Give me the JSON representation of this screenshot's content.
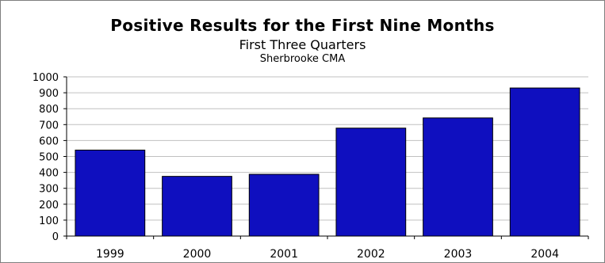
{
  "chart_data": {
    "type": "bar",
    "title": "Positive Results for the First Nine Months",
    "subtitle": "First Three Quarters",
    "subsubtitle": "Sherbrooke CMA",
    "categories": [
      "1999",
      "2000",
      "2001",
      "2002",
      "2003",
      "2004"
    ],
    "values": [
      540,
      375,
      388,
      678,
      742,
      930
    ],
    "xlabel": "",
    "ylabel": "",
    "ylim": [
      0,
      1000
    ],
    "yticks": [
      "0",
      "100",
      "200",
      "300",
      "400",
      "500",
      "600",
      "700",
      "800",
      "900",
      "1000"
    ],
    "grid": true,
    "legend": "none",
    "colors": {
      "bar": "#0f0fbf",
      "bar_border": "#000000",
      "grid": "#c0c0c0",
      "axis": "#000000"
    }
  }
}
